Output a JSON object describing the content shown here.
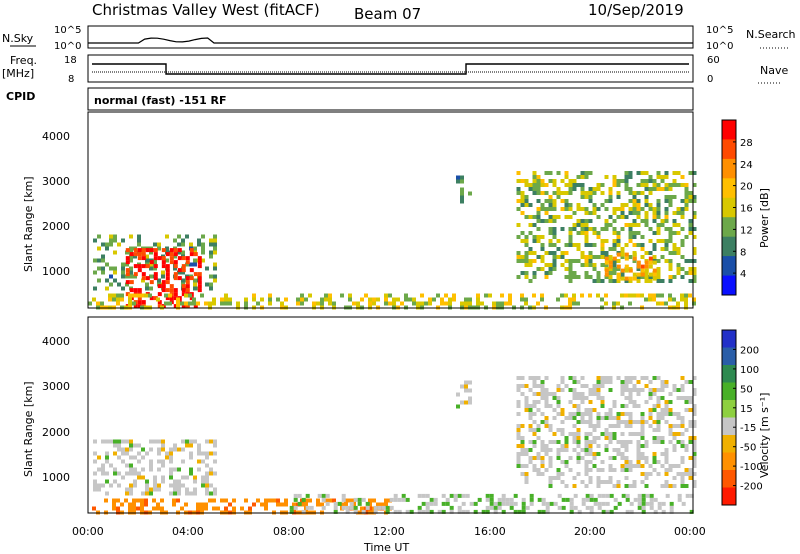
{
  "header": {
    "site": "Christmas Valley West (fitACF)",
    "beam": "Beam 07",
    "date": "10/Sep/2019"
  },
  "panels": {
    "nsky": {
      "left_label": "N.Sky",
      "right_label": "N.Search",
      "ticks": [
        "10^5",
        "10^0"
      ]
    },
    "freq": {
      "left_label": "Freq.",
      "units": "[MHz]",
      "left_ticks": [
        "18",
        "8"
      ],
      "right_ticks": [
        "60",
        "0"
      ],
      "right_label": "Nave"
    },
    "cpid": {
      "label": "CPID",
      "text": "normal (fast) -151 RF"
    }
  },
  "axes": {
    "x_ticks": [
      "00:00",
      "04:00",
      "08:00",
      "12:00",
      "16:00",
      "20:00",
      "00:00"
    ],
    "x_label": "Time UT",
    "y_ticks": [
      "4000",
      "3000",
      "2000",
      "1000"
    ],
    "y_label": "Slant Range [km]"
  },
  "colorbars": {
    "power": {
      "label": "Power [dB]",
      "ticks": [
        "28",
        "24",
        "20",
        "16",
        "12",
        "8",
        "4"
      ],
      "colors": [
        "#ff0000",
        "#ff4a00",
        "#ff8f00",
        "#ffbf00",
        "#d8c800",
        "#6ca84a",
        "#3c7f62",
        "#1a4fa8",
        "#0a10ff"
      ]
    },
    "velocity": {
      "label": "Velocity [m s⁻¹]",
      "ticks": [
        "200",
        "100",
        "50",
        "15",
        "-15",
        "-50",
        "-100",
        "-200"
      ],
      "colors": [
        "#2230c8",
        "#2a5ea8",
        "#2e8a50",
        "#48b028",
        "#8ed040",
        "#c6c6c6",
        "#f0b000",
        "#ff9000",
        "#ff5800",
        "#ff1a00"
      ]
    }
  },
  "chart_data": [
    {
      "type": "heatmap",
      "title": "Power [dB]",
      "xlabel": "Time UT",
      "ylabel": "Slant Range [km]",
      "xlim_hours": [
        0,
        24
      ],
      "ylim_km": [
        180,
        4500
      ],
      "regions": [
        {
          "t": [
            0.2,
            5.0
          ],
          "r": [
            600,
            1800
          ],
          "value_db": 12
        },
        {
          "t": [
            1.5,
            4.5
          ],
          "r": [
            200,
            1500
          ],
          "value_db": 28
        },
        {
          "t": [
            0.0,
            24.0
          ],
          "r": [
            180,
            500
          ],
          "value_db": 16
        },
        {
          "t": [
            14.6,
            15.2
          ],
          "r": [
            2500,
            3100
          ],
          "value_db": 10
        },
        {
          "t": [
            17.0,
            24.0
          ],
          "r": [
            800,
            3200
          ],
          "value_db": 14
        },
        {
          "t": [
            20.5,
            22.5
          ],
          "r": [
            800,
            1400
          ],
          "value_db": 20
        }
      ]
    },
    {
      "type": "heatmap",
      "title": "Velocity [m s-1]",
      "xlabel": "Time UT",
      "ylabel": "Slant Range [km]",
      "xlim_hours": [
        0,
        24
      ],
      "ylim_km": [
        180,
        4500
      ],
      "regions": [
        {
          "t": [
            0.2,
            5.0
          ],
          "r": [
            600,
            1800
          ],
          "value_ms": 0
        },
        {
          "t": [
            0.0,
            12.0
          ],
          "r": [
            180,
            500
          ],
          "value_ms": -60
        },
        {
          "t": [
            8.0,
            24.0
          ],
          "r": [
            180,
            600
          ],
          "value_ms": 10
        },
        {
          "t": [
            14.6,
            15.2
          ],
          "r": [
            2500,
            3100
          ],
          "value_ms": 0
        },
        {
          "t": [
            17.0,
            24.0
          ],
          "r": [
            800,
            3200
          ],
          "value_ms": 0
        }
      ]
    }
  ]
}
